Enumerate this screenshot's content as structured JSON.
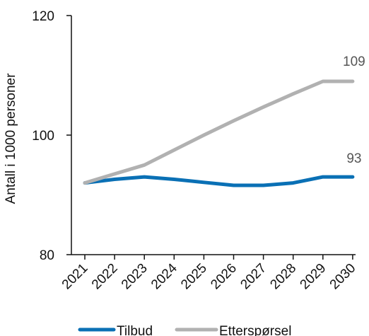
{
  "chart_data": {
    "type": "line",
    "categories": [
      "2021",
      "2022",
      "2023",
      "2024",
      "2025",
      "2026",
      "2027",
      "2028",
      "2029",
      "2030"
    ],
    "series": [
      {
        "name": "Tilbud",
        "color": "#0a70b5",
        "values": [
          92,
          92.6,
          93,
          92.6,
          92.1,
          91.6,
          91.6,
          92.0,
          93.0,
          93.0
        ],
        "end_label": "93"
      },
      {
        "name": "Etterspørsel",
        "color": "#b1b1b1",
        "values": [
          92,
          93.5,
          95,
          97.5,
          100,
          102.4,
          104.7,
          106.9,
          109.0,
          109.0
        ],
        "end_label": "109"
      }
    ],
    "ylabel": "Antall i 1000 personer",
    "xlabel": "",
    "ylim": [
      80,
      120
    ],
    "yticks": [
      80,
      100,
      120
    ],
    "grid": false,
    "legend_position": "bottom"
  }
}
